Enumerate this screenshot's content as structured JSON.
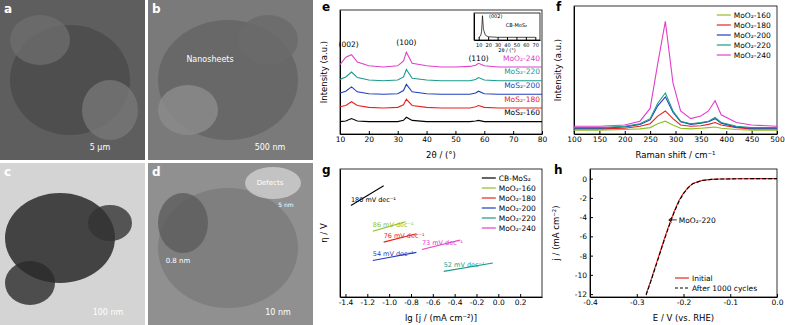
{
  "images": [
    {
      "label": "a",
      "texts": [
        "5 μm"
      ]
    },
    {
      "label": "b",
      "texts": [
        "Nanosheets",
        "500 nm"
      ]
    },
    {
      "label": "c",
      "texts": [
        "100 nm"
      ]
    },
    {
      "label": "d",
      "texts": [
        "0.8 nm",
        "Defects",
        "5 nm",
        "10 nm"
      ]
    }
  ],
  "chart_data": [
    {
      "type": "line",
      "title": "e",
      "xlabel": "2θ / (°)",
      "ylabel": "Intensity (a.u.)",
      "x": [
        10,
        12,
        14,
        16,
        20,
        25,
        30,
        32,
        33,
        35,
        40,
        45,
        50,
        55,
        57,
        58,
        60,
        65,
        70,
        75,
        80
      ],
      "xlim": [
        10,
        80
      ],
      "xticks": [
        10,
        20,
        30,
        40,
        50,
        60,
        70,
        80
      ],
      "ylim": [
        0,
        10
      ],
      "tick_labels": "x",
      "legend": "inline",
      "series": [
        {
          "name": "MoS₂-160",
          "color": "#000000",
          "values": [
            1.0,
            1.05,
            1.25,
            1.05,
            1.0,
            1.0,
            1.0,
            1.1,
            1.35,
            1.1,
            1.0,
            1.0,
            1.0,
            1.0,
            1.05,
            1.1,
            1.0,
            1.0,
            1.0,
            1.0,
            1.0
          ]
        },
        {
          "name": "MoS₂-180",
          "color": "#e8231f",
          "values": [
            2.2,
            2.3,
            2.6,
            2.3,
            2.15,
            2.1,
            2.15,
            2.35,
            2.8,
            2.3,
            2.15,
            2.1,
            2.1,
            2.1,
            2.2,
            2.3,
            2.15,
            2.1,
            2.1,
            2.1,
            2.1
          ]
        },
        {
          "name": "MoS₂-200",
          "color": "#1f3fbf",
          "values": [
            3.3,
            3.45,
            3.8,
            3.4,
            3.25,
            3.2,
            3.25,
            3.5,
            4.0,
            3.4,
            3.25,
            3.2,
            3.2,
            3.2,
            3.3,
            3.45,
            3.25,
            3.2,
            3.2,
            3.2,
            3.2
          ]
        },
        {
          "name": "MoS₂-220",
          "color": "#1a9a8a",
          "values": [
            4.4,
            4.6,
            5.0,
            4.55,
            4.35,
            4.3,
            4.35,
            4.6,
            5.2,
            4.5,
            4.35,
            4.3,
            4.3,
            4.3,
            4.4,
            4.55,
            4.35,
            4.3,
            4.3,
            4.3,
            4.3
          ]
        },
        {
          "name": "MoO₂-240",
          "color": "#e040c8",
          "values": [
            5.6,
            6.2,
            6.4,
            5.8,
            5.5,
            5.4,
            5.5,
            5.9,
            6.6,
            5.7,
            5.5,
            5.4,
            5.4,
            5.45,
            5.55,
            5.7,
            5.5,
            5.4,
            5.4,
            5.4,
            5.4
          ]
        }
      ],
      "annotations": [
        {
          "text": "(002)",
          "x": 13,
          "y": 7.0
        },
        {
          "text": "(100)",
          "x": 33,
          "y": 7.2
        },
        {
          "text": "(110)",
          "x": 58,
          "y": 5.9
        }
      ]
    },
    {
      "type": "line",
      "xlabel": "2θ / (°)",
      "x": [
        10,
        12,
        13,
        14,
        15,
        17,
        20,
        30,
        40,
        50,
        60,
        70
      ],
      "values": [
        1,
        1.5,
        3,
        9,
        4,
        1.8,
        1.2,
        1,
        1,
        1,
        1,
        1
      ],
      "color": "#000000",
      "xlim": [
        5,
        75
      ],
      "xticks": [
        10,
        20,
        30,
        40,
        50,
        60,
        70
      ],
      "ylim": [
        0,
        10
      ],
      "tick_labels": "x",
      "annotations": [
        {
          "text": "(002)",
          "x": 28,
          "y": 8
        },
        {
          "text": "CB-MoS₂",
          "x": 50,
          "y": 5
        }
      ]
    },
    {
      "type": "line",
      "title": "f",
      "xlabel": "Raman shift / cm⁻¹",
      "ylabel": "Intensity (a.u.)",
      "x": [
        100,
        150,
        200,
        230,
        250,
        265,
        280,
        295,
        310,
        330,
        350,
        365,
        378,
        390,
        420,
        450,
        500
      ],
      "xlim": [
        100,
        500
      ],
      "xticks": [
        100,
        150,
        200,
        250,
        300,
        350,
        400,
        450,
        500
      ],
      "ylim": [
        0,
        10
      ],
      "tick_labels": "x",
      "legend": "top-right",
      "series": [
        {
          "name": "MoO₂-160",
          "color": "#8fbf1f",
          "values": [
            0.3,
            0.3,
            0.35,
            0.4,
            0.5,
            0.8,
            1.0,
            0.7,
            0.45,
            0.4,
            0.45,
            0.5,
            0.55,
            0.45,
            0.35,
            0.3,
            0.3
          ]
        },
        {
          "name": "MoO₂-180",
          "color": "#e8231f",
          "values": [
            0.4,
            0.4,
            0.45,
            0.6,
            0.8,
            1.4,
            1.8,
            1.2,
            0.7,
            0.6,
            0.65,
            0.75,
            0.9,
            0.7,
            0.5,
            0.4,
            0.4
          ]
        },
        {
          "name": "MoO₂-200",
          "color": "#1f3fbf",
          "values": [
            0.45,
            0.45,
            0.55,
            0.75,
            1.1,
            2.2,
            2.9,
            1.7,
            0.95,
            0.75,
            0.85,
            0.95,
            1.2,
            0.85,
            0.55,
            0.45,
            0.45
          ]
        },
        {
          "name": "MoO₂-220",
          "color": "#1a9a8a",
          "values": [
            0.5,
            0.5,
            0.6,
            0.8,
            1.2,
            2.4,
            3.2,
            1.8,
            1.0,
            0.8,
            0.9,
            1.0,
            1.3,
            0.9,
            0.6,
            0.5,
            0.5
          ]
        },
        {
          "name": "MoO₂-240",
          "color": "#e040c8",
          "values": [
            0.6,
            0.6,
            0.7,
            1.0,
            2.0,
            5.5,
            8.8,
            4.0,
            1.8,
            1.2,
            1.4,
            1.8,
            2.6,
            1.5,
            0.9,
            0.7,
            0.6
          ]
        }
      ]
    },
    {
      "type": "line",
      "title": "g",
      "xlabel": "lg [j / (mA cm⁻²)]",
      "ylabel": "η / V",
      "xlim": [
        -1.45,
        0.4
      ],
      "xticks": [
        -1.4,
        -1.2,
        {
          "value": -1,
          "label": "-1.0"
        },
        -0.8,
        -0.6,
        -0.4,
        -0.2,
        {
          "value": 0,
          "label": "0.0"
        },
        0.2
      ],
      "ylim": [
        0.15,
        0.5
      ],
      "tick_labels": "x",
      "legend": "top-right",
      "series": [
        {
          "name": "CB-MoS₂",
          "color": "#000000",
          "x": [
            -1.35,
            -1.05
          ],
          "values": [
            0.4,
            0.454
          ],
          "annotation": "180 mV dec⁻¹"
        },
        {
          "name": "MoO₂-160",
          "color": "#8fbf1f",
          "x": [
            -1.15,
            -0.85
          ],
          "values": [
            0.33,
            0.356
          ],
          "annotation": "86 mV dec⁻¹"
        },
        {
          "name": "MoO₂-180",
          "color": "#e8231f",
          "x": [
            -1.05,
            -0.75
          ],
          "values": [
            0.3,
            0.323
          ],
          "annotation": "76 mV dec⁻¹"
        },
        {
          "name": "MoO₂-200",
          "color": "#1f3fbf",
          "x": [
            -1.15,
            -0.75
          ],
          "values": [
            0.25,
            0.272
          ],
          "annotation": "54 mV dec⁻¹"
        },
        {
          "name": "MoO₂-220",
          "color": "#1a9a8a",
          "x": [
            -0.5,
            -0.05
          ],
          "values": [
            0.22,
            0.243
          ],
          "annotation": "52 mV dec⁻¹"
        },
        {
          "name": "MoO₂-240",
          "color": "#e040c8",
          "x": [
            -0.7,
            -0.35
          ],
          "values": [
            0.28,
            0.306
          ],
          "annotation": "73 mV dec⁻¹"
        }
      ]
    },
    {
      "type": "line",
      "title": "h",
      "xlabel": "E / V (vs. RHE)",
      "ylabel": "j / (mA cm⁻²)",
      "x": [
        -0.28,
        -0.27,
        -0.26,
        -0.25,
        -0.24,
        -0.23,
        -0.22,
        -0.21,
        -0.2,
        -0.19,
        -0.18,
        -0.16,
        -0.14,
        -0.12,
        -0.08,
        -0.04,
        0
      ],
      "xlim": [
        -0.4,
        0
      ],
      "xticks": [
        -0.4,
        -0.3,
        -0.2,
        -0.1,
        {
          "value": 0,
          "label": "0.0"
        }
      ],
      "ylim": [
        -12.3,
        1
      ],
      "yticks": [
        -12,
        -10,
        -8,
        -6,
        -4,
        -2,
        0
      ],
      "legend": "bottom-right",
      "series": [
        {
          "name": "Initial",
          "color": "#e8231f",
          "line_style": "solid",
          "values": [
            -12,
            -10.6,
            -9.1,
            -7.6,
            -6.1,
            -4.7,
            -3.4,
            -2.3,
            -1.5,
            -0.9,
            -0.5,
            -0.18,
            -0.08,
            -0.04,
            -0.01,
            0,
            0
          ]
        },
        {
          "name": "After 1000 cycles",
          "color": "#000000",
          "line_style": "dashed",
          "values": [
            -12.1,
            -10.7,
            -9.2,
            -7.7,
            -6.2,
            -4.8,
            -3.5,
            -2.4,
            -1.55,
            -0.95,
            -0.52,
            -0.19,
            -0.08,
            -0.04,
            -0.01,
            0,
            0
          ]
        }
      ],
      "annotations": [
        {
          "text": "MoO₂-220",
          "x": -0.21,
          "y": -4.6
        }
      ]
    }
  ]
}
